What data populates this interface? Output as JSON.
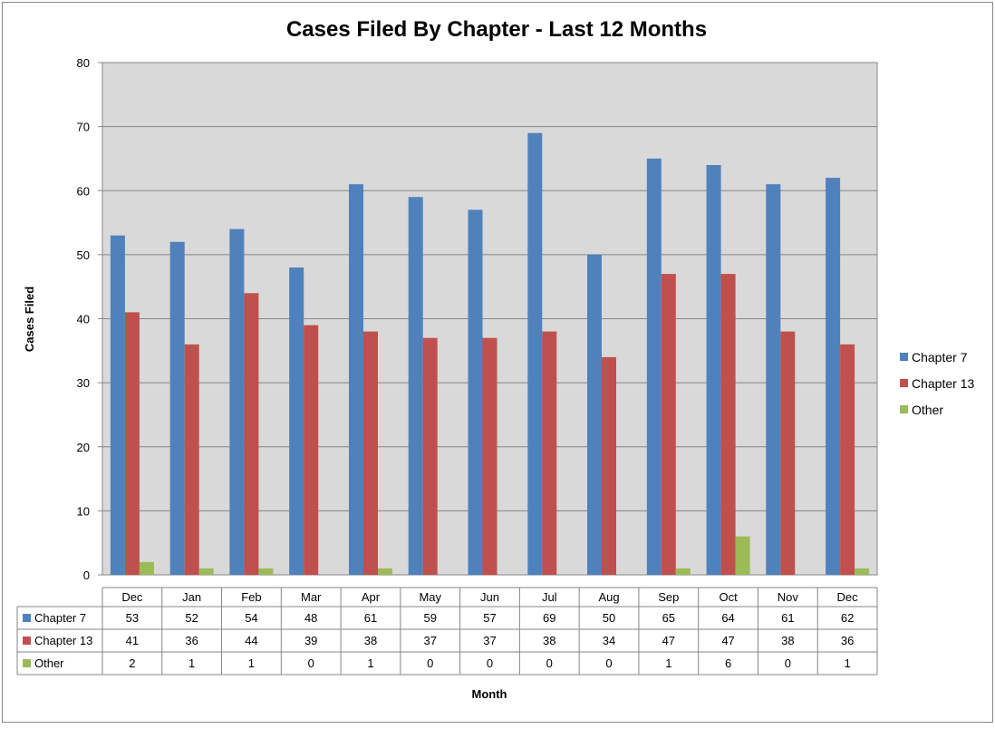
{
  "chart_data": {
    "type": "bar",
    "title": "Cases Filed By Chapter - Last 12 Months",
    "xlabel": "Month",
    "ylabel": "Cases Filed",
    "ylim": [
      0,
      80
    ],
    "yticks": [
      0,
      10,
      20,
      30,
      40,
      50,
      60,
      70,
      80
    ],
    "grid": true,
    "legend_position": "right",
    "categories": [
      "Dec",
      "Jan",
      "Feb",
      "Mar",
      "Apr",
      "May",
      "Jun",
      "Jul",
      "Aug",
      "Sep",
      "Oct",
      "Nov",
      "Dec"
    ],
    "series": [
      {
        "name": "Chapter 7",
        "color": "#4f81bd",
        "values": [
          53,
          52,
          54,
          48,
          61,
          59,
          57,
          69,
          50,
          65,
          64,
          61,
          62
        ]
      },
      {
        "name": "Chapter 13",
        "color": "#c0504d",
        "values": [
          41,
          36,
          44,
          39,
          38,
          37,
          37,
          38,
          34,
          47,
          47,
          38,
          36
        ]
      },
      {
        "name": "Other",
        "color": "#9bbb59",
        "values": [
          2,
          1,
          1,
          0,
          1,
          0,
          0,
          0,
          0,
          1,
          6,
          0,
          1
        ]
      }
    ],
    "plot_background": "#d9d9d9",
    "has_data_table": true
  }
}
